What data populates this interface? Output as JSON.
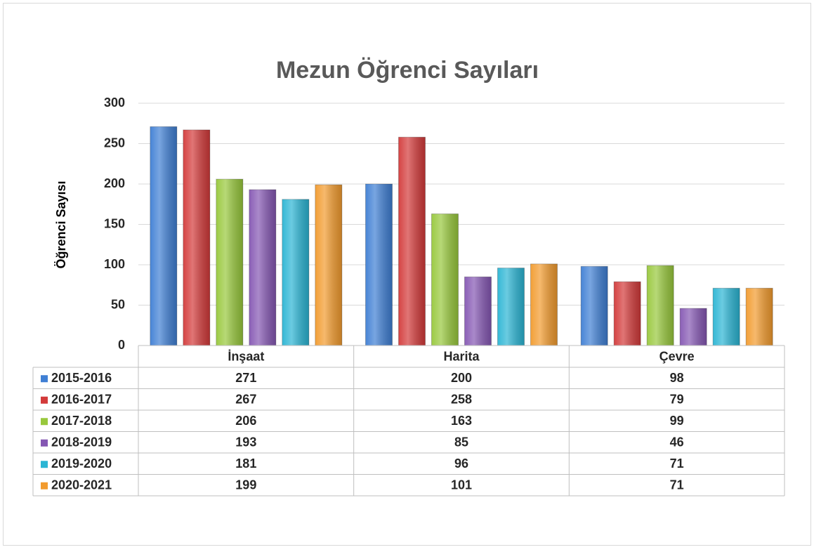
{
  "chart_data": {
    "type": "bar",
    "title": "Mezun Öğrenci Sayıları",
    "y_label": "Öğrenci Sayısı",
    "categories": [
      "İnşaat",
      "Harita",
      "Çevre"
    ],
    "series": [
      {
        "name": "2015-2016",
        "color": "#3f7fd4",
        "values": [
          271,
          200,
          98
        ]
      },
      {
        "name": "2016-2017",
        "color": "#d33a3a",
        "values": [
          267,
          258,
          79
        ]
      },
      {
        "name": "2017-2018",
        "color": "#98c83c",
        "values": [
          206,
          163,
          99
        ]
      },
      {
        "name": "2018-2019",
        "color": "#8557b3",
        "values": [
          193,
          85,
          46
        ]
      },
      {
        "name": "2019-2020",
        "color": "#2bb5d4",
        "values": [
          181,
          96,
          71
        ]
      },
      {
        "name": "2020-2021",
        "color": "#f29b2e",
        "values": [
          199,
          101,
          71
        ]
      }
    ],
    "ylim": [
      0,
      300
    ],
    "yticks": [
      0,
      50,
      100,
      150,
      200,
      250,
      300
    ],
    "grid": true,
    "data_table": true
  }
}
